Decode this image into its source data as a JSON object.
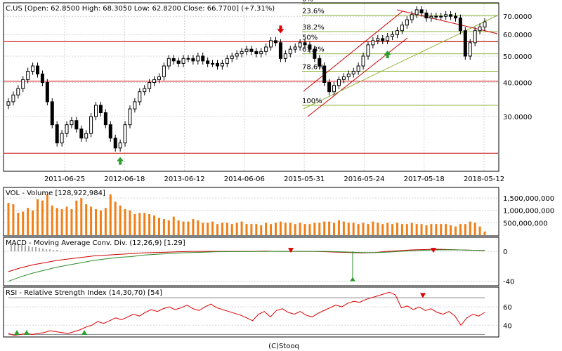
{
  "price_panel": {
    "symbol_line": "C.US [Open: 62.8500  High: 68.3050  Low: 62.8200  Close: 66.7700] (+7.31%)",
    "y_ticks": [
      "70.0000",
      "60.0000",
      "50.0000",
      "40.0000",
      "30.0000"
    ],
    "x_ticks": [
      "2011-06-25",
      "2012-06-18",
      "2013-06-12",
      "2014-06-06",
      "2015-05-31",
      "2016-05-24",
      "2017-05-18",
      "2018-05-12"
    ],
    "fib_labels": [
      "0%",
      "23.6%",
      "38.2%",
      "50%",
      "61.8%",
      "78.6%",
      "100%"
    ]
  },
  "volume_panel": {
    "title": "VOL - Volume [128,922,984]",
    "y_ticks": [
      "1,500,000,000",
      "1,000,000,000",
      "500,000,000"
    ]
  },
  "macd_panel": {
    "title": "MACD - Moving Average Conv. Div. (12,26,9) [1.29]",
    "y_ticks": [
      "0",
      "-40"
    ]
  },
  "rsi_panel": {
    "title": "RSI - Relative Strength Index (14,30,70) [54]",
    "y_ticks": [
      "60",
      "40"
    ]
  },
  "footer": {
    "credit": "(C)Stooq"
  },
  "colors": {
    "up_candle": "#ffffff",
    "down_candle": "#000000",
    "support_line": "#cc0000",
    "fib_line": "#8fb33a",
    "volume_bar": "#f07f17",
    "macd_line": "#cc0000",
    "signal_line": "#2a8a2a",
    "rsi_line": "#dd0000",
    "buy_arrow": "#2e9d2e",
    "sell_arrow": "#dd0000"
  },
  "chart_data": [
    {
      "type": "candlestick",
      "x_ticks": [
        "2011-06-25",
        "2012-06-18",
        "2013-06-12",
        "2014-06-06",
        "2015-05-31",
        "2016-05-24",
        "2017-05-18",
        "2018-05-12"
      ],
      "ylim": [
        19,
        78
      ],
      "y_scale": "log",
      "last_bar": {
        "open": 62.85,
        "high": 68.305,
        "low": 62.82,
        "close": 66.77,
        "change_pct": 7.31
      },
      "close_series": [
        34,
        36,
        38,
        41,
        44,
        46,
        43,
        40,
        34,
        28,
        24,
        26,
        28,
        29,
        27,
        25,
        26,
        30,
        33,
        31,
        28,
        25,
        23,
        24,
        28,
        32,
        34,
        37,
        38,
        40,
        41,
        42,
        46,
        49,
        48,
        47,
        49,
        49,
        48,
        50,
        48,
        47,
        47,
        46,
        47,
        49,
        50,
        51,
        52,
        53,
        52,
        51,
        52,
        54,
        57,
        56,
        49,
        51,
        53,
        54,
        56,
        55,
        53,
        49,
        46,
        40,
        37,
        39,
        41,
        42,
        43,
        44,
        46,
        50,
        55,
        57,
        58,
        57,
        59,
        60,
        62,
        65,
        68,
        71,
        74,
        72,
        69,
        70,
        70,
        70,
        71,
        70,
        69,
        62,
        50,
        56,
        62,
        64,
        66.77
      ],
      "horizontal_lines": [
        22,
        40.5,
        56.5
      ],
      "fibonacci_levels": [
        {
          "label": "0%",
          "value": 78
        },
        {
          "label": "23.6%",
          "value": 70.5
        },
        {
          "label": "38.2%",
          "value": 61.5
        },
        {
          "label": "50%",
          "value": 56.5
        },
        {
          "label": "61.8%",
          "value": 51
        },
        {
          "label": "78.6%",
          "value": 44
        },
        {
          "label": "100%",
          "value": 33
        }
      ],
      "signals": [
        {
          "kind": "buy",
          "bar": 23
        },
        {
          "kind": "sell",
          "bar": 56
        },
        {
          "kind": "buy",
          "bar": 78
        }
      ]
    },
    {
      "type": "bar",
      "series": [
        {
          "name": "Volume",
          "values": [
            1300,
            1250,
            900,
            950,
            1100,
            1000,
            1450,
            1400,
            1650,
            1200,
            1100,
            1050,
            1150,
            1050,
            1400,
            1500,
            1250,
            1150,
            1050,
            1000,
            1100,
            1650,
            1350,
            1200,
            1050,
            1000,
            850,
            900,
            900,
            850,
            800,
            700,
            650,
            600,
            750,
            600,
            550,
            550,
            650,
            600,
            500,
            500,
            550,
            450,
            500,
            500,
            450,
            500,
            550,
            450,
            450,
            450,
            400,
            500,
            450,
            500,
            550,
            500,
            500,
            450,
            500,
            450,
            450,
            500,
            500,
            550,
            550,
            500,
            600,
            550,
            500,
            500,
            450,
            500,
            450,
            550,
            500,
            450,
            500,
            450,
            500,
            450,
            450,
            500,
            450,
            450,
            400,
            450,
            450,
            450,
            450,
            400,
            350,
            450,
            450,
            550,
            500,
            350,
            150
          ]
        }
      ],
      "ylim": [
        0,
        1900
      ],
      "unit": "millions"
    },
    {
      "type": "line",
      "series": [
        {
          "name": "MACD",
          "values": [
            -27,
            -22,
            -18,
            -15,
            -12,
            -10,
            -8,
            -6,
            -5,
            -4,
            -3,
            -2,
            -1.5,
            -1,
            -0.5,
            0,
            0,
            0,
            0,
            0,
            0,
            0.5,
            0,
            0,
            0,
            0,
            -0.5,
            -1,
            -1.5,
            -2,
            -1.5,
            0,
            1,
            2,
            2.5,
            3,
            2.5,
            2,
            1.5,
            1.29
          ]
        },
        {
          "name": "Signal",
          "values": [
            -40,
            -34,
            -29,
            -25,
            -21,
            -18,
            -15,
            -12,
            -10,
            -8,
            -7,
            -5,
            -4,
            -3,
            -2,
            -1.5,
            -1,
            -0.5,
            -0.3,
            -0.2,
            -0.1,
            0,
            0,
            0,
            0,
            0,
            0,
            -0.5,
            -1,
            -1.5,
            -1.5,
            -1,
            0,
            1,
            1.5,
            2,
            2.2,
            2,
            1.6,
            1.4
          ]
        }
      ],
      "histogram": [
        10,
        11,
        10,
        9,
        8,
        7,
        6,
        6,
        5,
        4,
        3,
        3,
        2,
        2,
        1
      ],
      "spike": {
        "index": 50,
        "value": -40
      },
      "ylim": [
        -45,
        18
      ]
    },
    {
      "type": "line",
      "series": [
        {
          "name": "RSI",
          "values": [
            31,
            29,
            30,
            31,
            30,
            31,
            32,
            34,
            33,
            32,
            31,
            33,
            35,
            38,
            40,
            44,
            42,
            45,
            48,
            46,
            49,
            52,
            50,
            54,
            57,
            55,
            58,
            60,
            57,
            59,
            62,
            58,
            56,
            60,
            63,
            59,
            57,
            55,
            53,
            51,
            48,
            45,
            52,
            55,
            49,
            56,
            58,
            54,
            52,
            55,
            51,
            49,
            53,
            56,
            59,
            62,
            60,
            64,
            66,
            65,
            68,
            70,
            72,
            74,
            76,
            73,
            59,
            61,
            57,
            60,
            56,
            58,
            54,
            52,
            55,
            50,
            40,
            48,
            52,
            50,
            54
          ]
        }
      ],
      "reference_lines": [
        30,
        70
      ],
      "ylim": [
        28,
        80
      ]
    }
  ]
}
